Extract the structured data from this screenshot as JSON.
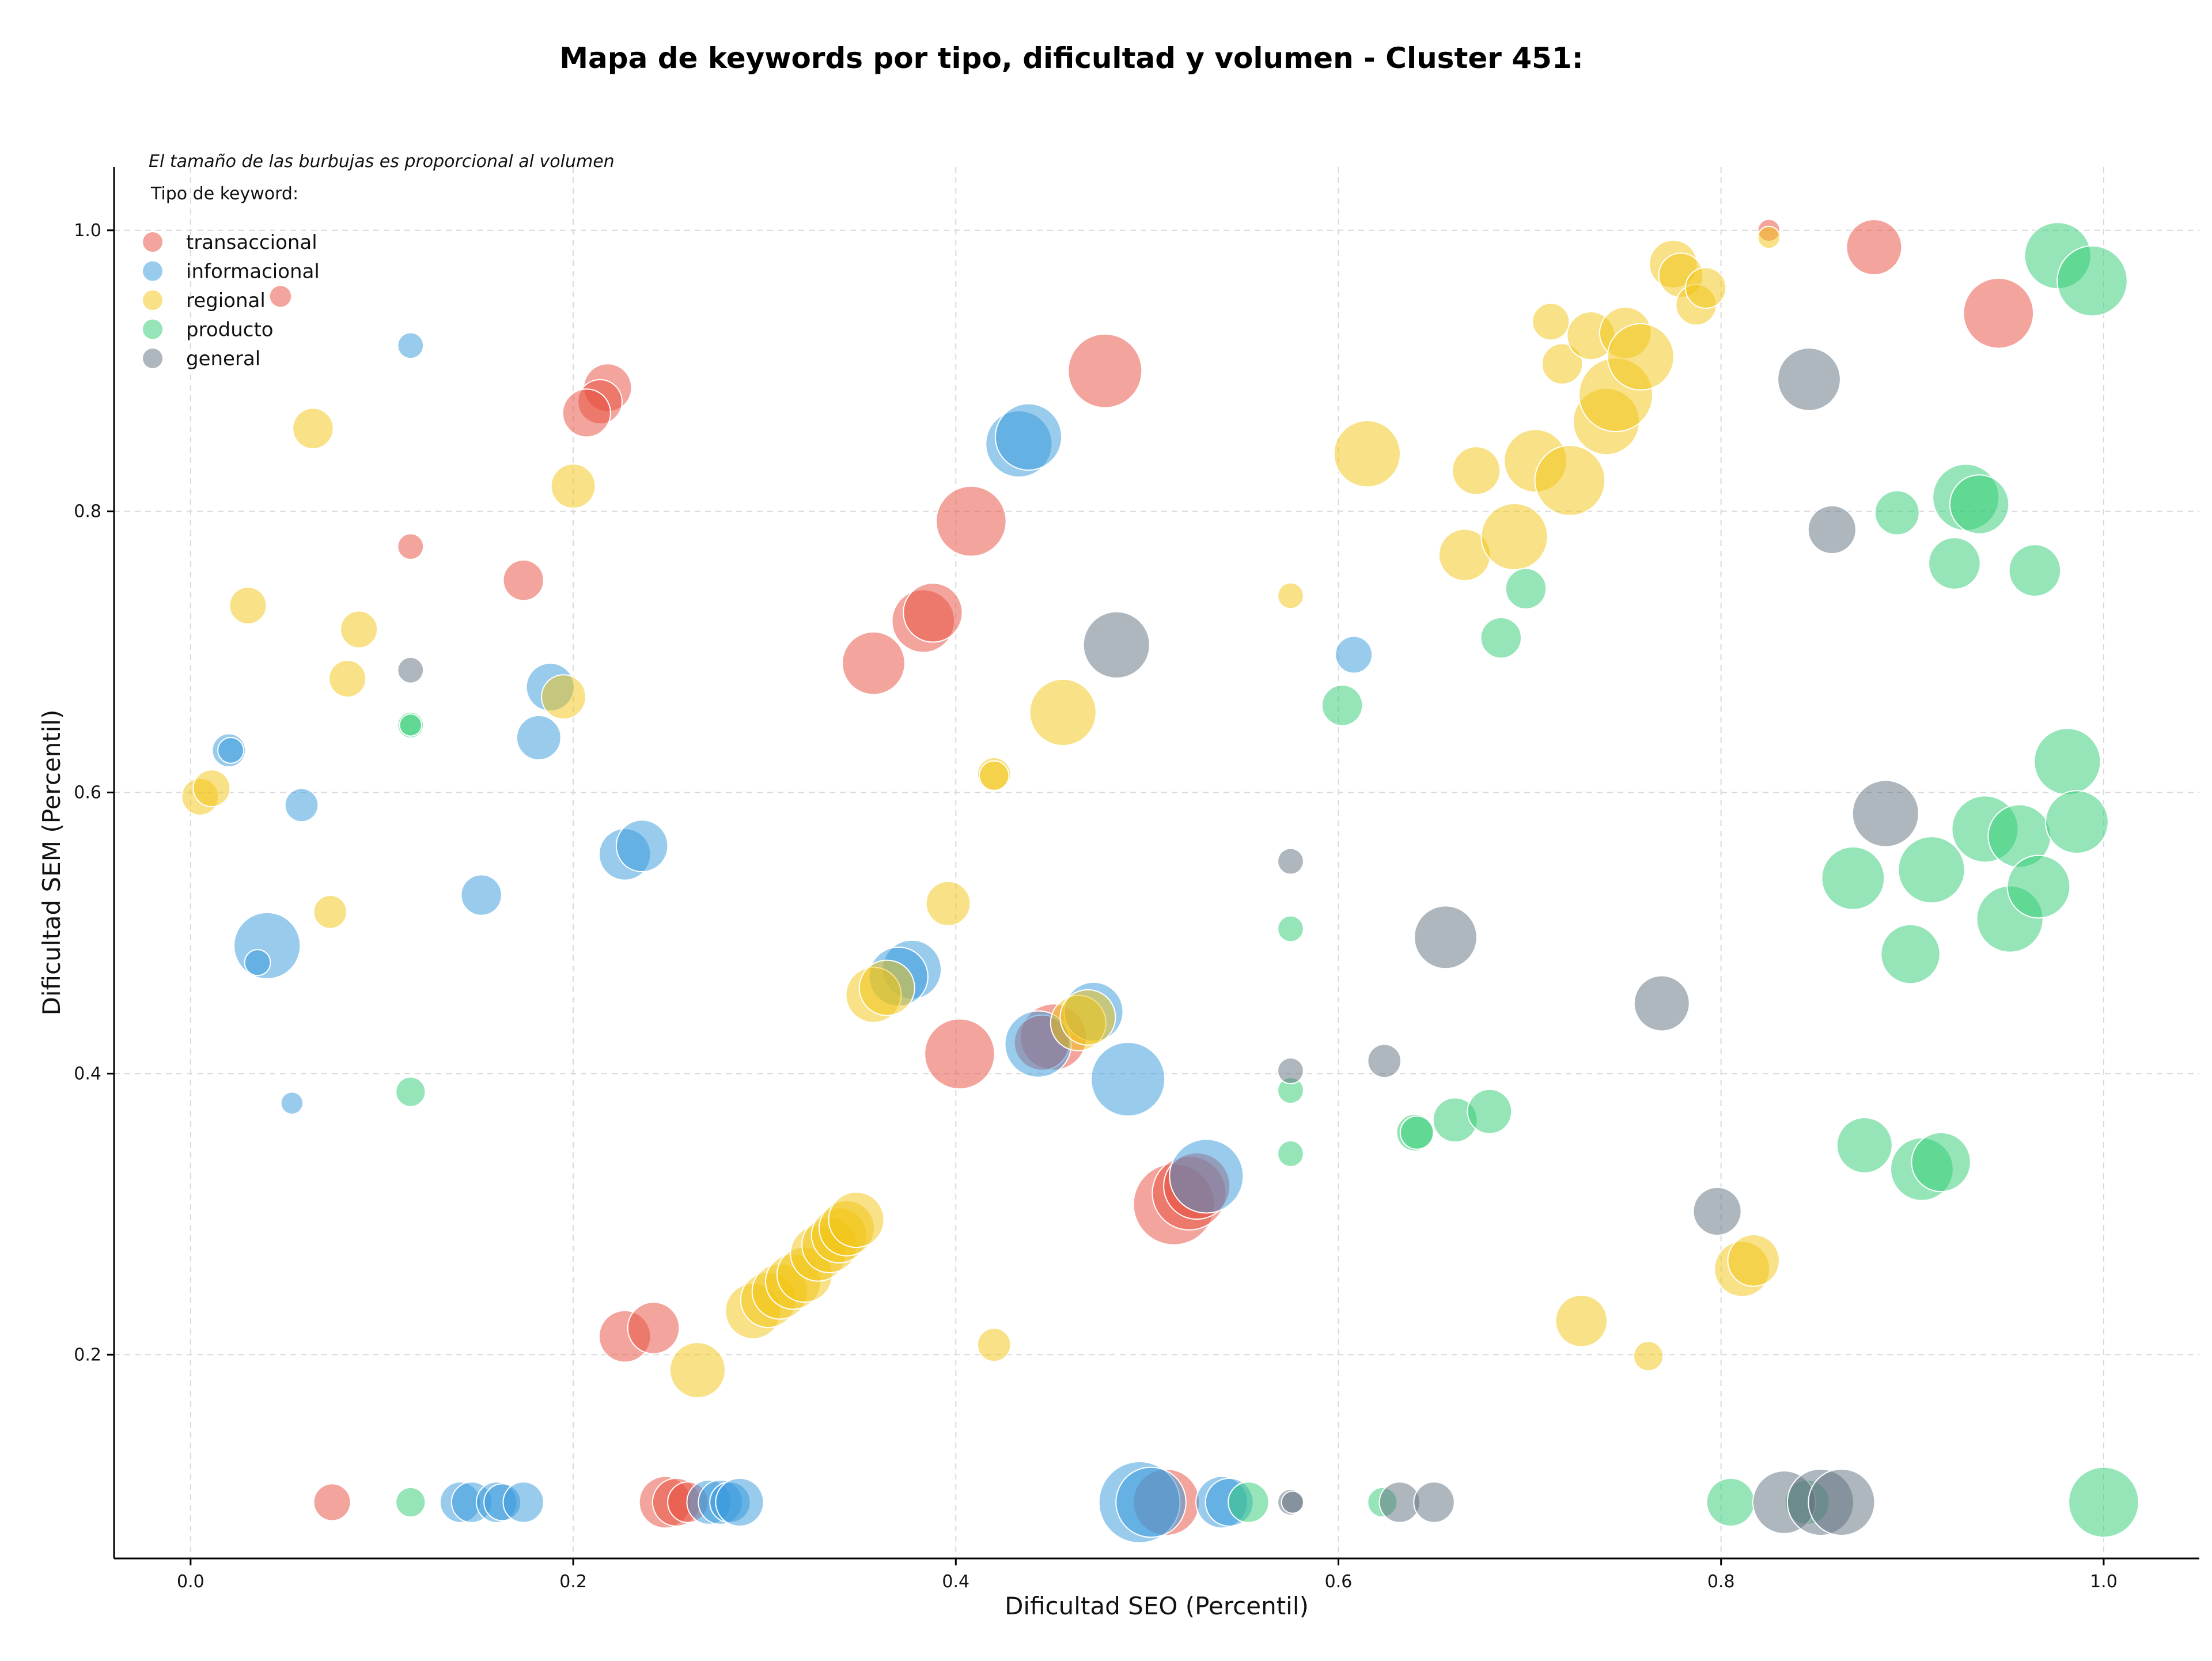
{
  "chart_data": {
    "type": "scatter",
    "title": "Mapa de keywords por tipo, dificultad y volumen - Cluster 451:",
    "xlabel": "Dificultad SEO (Percentil)",
    "ylabel": "Dificultad SEM (Percentil)",
    "xlim": [
      -0.04,
      1.05
    ],
    "ylim": [
      0.055,
      1.045
    ],
    "xticks": [
      "0.0",
      "0.2",
      "0.4",
      "0.6",
      "0.8",
      "1.0"
    ],
    "yticks": [
      "0.2",
      "0.4",
      "0.6",
      "0.8",
      "1.0"
    ],
    "grid": true,
    "legend": {
      "placement": "top-left",
      "note": "El tamaño de las burbujas es proporcional al volumen",
      "title": "Tipo de keyword:"
    },
    "size_scale": "bubble size proportional to volume (relative units)",
    "series": [
      {
        "name": "transaccional",
        "color": "#e74c3c",
        "points": [
          [
            0.047,
            0.953,
            12
          ],
          [
            0.115,
            0.775,
            14
          ],
          [
            0.174,
            0.751,
            22
          ],
          [
            0.218,
            0.888,
            26
          ],
          [
            0.214,
            0.878,
            24
          ],
          [
            0.207,
            0.87,
            26
          ],
          [
            0.478,
            0.9,
            40
          ],
          [
            0.408,
            0.793,
            38
          ],
          [
            0.383,
            0.722,
            34
          ],
          [
            0.388,
            0.728,
            32
          ],
          [
            0.357,
            0.692,
            34
          ],
          [
            0.402,
            0.414,
            38
          ],
          [
            0.451,
            0.426,
            36
          ],
          [
            0.445,
            0.422,
            30
          ],
          [
            0.514,
            0.307,
            44
          ],
          [
            0.522,
            0.315,
            40
          ],
          [
            0.526,
            0.32,
            36
          ],
          [
            0.227,
            0.213,
            28
          ],
          [
            0.242,
            0.219,
            28
          ],
          [
            0.074,
            0.095,
            20
          ],
          [
            0.248,
            0.095,
            28
          ],
          [
            0.254,
            0.095,
            26
          ],
          [
            0.26,
            0.095,
            22
          ],
          [
            0.51,
            0.095,
            36
          ],
          [
            0.825,
            1.0,
            12
          ],
          [
            0.88,
            0.988,
            30
          ],
          [
            0.945,
            0.941,
            38
          ]
        ]
      },
      {
        "name": "informacional",
        "color": "#3498db",
        "points": [
          [
            0.115,
            0.918,
            14
          ],
          [
            0.02,
            0.63,
            18
          ],
          [
            0.021,
            0.63,
            14
          ],
          [
            0.058,
            0.591,
            18
          ],
          [
            0.04,
            0.491,
            36
          ],
          [
            0.035,
            0.479,
            14
          ],
          [
            0.053,
            0.379,
            12
          ],
          [
            0.152,
            0.527,
            22
          ],
          [
            0.182,
            0.639,
            24
          ],
          [
            0.188,
            0.675,
            26
          ],
          [
            0.227,
            0.556,
            28
          ],
          [
            0.236,
            0.562,
            28
          ],
          [
            0.433,
            0.848,
            36
          ],
          [
            0.438,
            0.853,
            36
          ],
          [
            0.377,
            0.474,
            32
          ],
          [
            0.37,
            0.469,
            32
          ],
          [
            0.443,
            0.421,
            36
          ],
          [
            0.472,
            0.444,
            32
          ],
          [
            0.49,
            0.396,
            40
          ],
          [
            0.608,
            0.698,
            20
          ],
          [
            0.531,
            0.327,
            40
          ],
          [
            0.141,
            0.095,
            22
          ],
          [
            0.147,
            0.095,
            22
          ],
          [
            0.16,
            0.095,
            22
          ],
          [
            0.163,
            0.095,
            20
          ],
          [
            0.174,
            0.095,
            22
          ],
          [
            0.271,
            0.095,
            24
          ],
          [
            0.277,
            0.095,
            24
          ],
          [
            0.282,
            0.095,
            22
          ],
          [
            0.287,
            0.095,
            26
          ],
          [
            0.496,
            0.095,
            44
          ],
          [
            0.502,
            0.095,
            38
          ],
          [
            0.539,
            0.095,
            28
          ],
          [
            0.543,
            0.095,
            26
          ]
        ]
      },
      {
        "name": "regional",
        "color": "#f1c40f",
        "points": [
          [
            0.064,
            0.859,
            22
          ],
          [
            0.03,
            0.733,
            20
          ],
          [
            0.088,
            0.716,
            20
          ],
          [
            0.082,
            0.681,
            20
          ],
          [
            0.005,
            0.597,
            20
          ],
          [
            0.011,
            0.603,
            20
          ],
          [
            0.073,
            0.515,
            18
          ],
          [
            0.2,
            0.818,
            24
          ],
          [
            0.195,
            0.668,
            24
          ],
          [
            0.42,
            0.613,
            18
          ],
          [
            0.42,
            0.612,
            16
          ],
          [
            0.396,
            0.521,
            24
          ],
          [
            0.357,
            0.456,
            30
          ],
          [
            0.364,
            0.461,
            30
          ],
          [
            0.456,
            0.657,
            36
          ],
          [
            0.464,
            0.436,
            30
          ],
          [
            0.469,
            0.44,
            30
          ],
          [
            0.575,
            0.74,
            14
          ],
          [
            0.265,
            0.189,
            30
          ],
          [
            0.42,
            0.207,
            18
          ],
          [
            0.294,
            0.231,
            30
          ],
          [
            0.302,
            0.239,
            30
          ],
          [
            0.308,
            0.245,
            30
          ],
          [
            0.315,
            0.252,
            30
          ],
          [
            0.321,
            0.257,
            30
          ],
          [
            0.328,
            0.272,
            30
          ],
          [
            0.334,
            0.278,
            30
          ],
          [
            0.339,
            0.285,
            30
          ],
          [
            0.343,
            0.29,
            30
          ],
          [
            0.348,
            0.296,
            30
          ],
          [
            0.615,
            0.841,
            36
          ],
          [
            0.672,
            0.829,
            26
          ],
          [
            0.666,
            0.769,
            28
          ],
          [
            0.692,
            0.782,
            36
          ],
          [
            0.703,
            0.836,
            34
          ],
          [
            0.721,
            0.822,
            38
          ],
          [
            0.711,
            0.935,
            20
          ],
          [
            0.717,
            0.905,
            22
          ],
          [
            0.732,
            0.925,
            26
          ],
          [
            0.74,
            0.864,
            36
          ],
          [
            0.745,
            0.883,
            40
          ],
          [
            0.75,
            0.927,
            28
          ],
          [
            0.758,
            0.91,
            36
          ],
          [
            0.775,
            0.976,
            26
          ],
          [
            0.779,
            0.968,
            24
          ],
          [
            0.787,
            0.947,
            22
          ],
          [
            0.792,
            0.959,
            22
          ],
          [
            0.825,
            0.995,
            12
          ],
          [
            0.811,
            0.261,
            30
          ],
          [
            0.817,
            0.267,
            28
          ],
          [
            0.727,
            0.224,
            28
          ],
          [
            0.762,
            0.199,
            16
          ]
        ]
      },
      {
        "name": "producto",
        "color": "#2ecc71",
        "points": [
          [
            0.115,
            0.648,
            14
          ],
          [
            0.115,
            0.648,
            12
          ],
          [
            0.115,
            0.387,
            16
          ],
          [
            0.115,
            0.095,
            16
          ],
          [
            0.575,
            0.503,
            14
          ],
          [
            0.575,
            0.388,
            14
          ],
          [
            0.575,
            0.343,
            14
          ],
          [
            0.602,
            0.662,
            22
          ],
          [
            0.685,
            0.71,
            22
          ],
          [
            0.698,
            0.745,
            22
          ],
          [
            0.64,
            0.358,
            20
          ],
          [
            0.641,
            0.358,
            18
          ],
          [
            0.661,
            0.367,
            24
          ],
          [
            0.679,
            0.373,
            24
          ],
          [
            0.623,
            0.095,
            16
          ],
          [
            0.553,
            0.095,
            22
          ],
          [
            0.805,
            0.095,
            26
          ],
          [
            0.845,
            0.095,
            24
          ],
          [
            0.875,
            0.349,
            30
          ],
          [
            0.869,
            0.539,
            34
          ],
          [
            0.899,
            0.485,
            32
          ],
          [
            0.91,
            0.545,
            36
          ],
          [
            0.905,
            0.332,
            34
          ],
          [
            0.915,
            0.337,
            32
          ],
          [
            0.892,
            0.799,
            24
          ],
          [
            0.922,
            0.763,
            28
          ],
          [
            0.928,
            0.81,
            36
          ],
          [
            0.935,
            0.805,
            32
          ],
          [
            0.938,
            0.574,
            36
          ],
          [
            0.951,
            0.51,
            36
          ],
          [
            0.956,
            0.569,
            34
          ],
          [
            0.964,
            0.758,
            28
          ],
          [
            0.966,
            0.533,
            34
          ],
          [
            0.981,
            0.622,
            36
          ],
          [
            0.986,
            0.579,
            34
          ],
          [
            0.976,
            0.982,
            36
          ],
          [
            0.994,
            0.964,
            38
          ],
          [
            1.0,
            0.095,
            38
          ]
        ]
      },
      {
        "name": "general",
        "color": "#5d6d7e",
        "points": [
          [
            0.115,
            0.687,
            14
          ],
          [
            0.484,
            0.705,
            36
          ],
          [
            0.575,
            0.551,
            14
          ],
          [
            0.575,
            0.402,
            14
          ],
          [
            0.624,
            0.409,
            18
          ],
          [
            0.656,
            0.497,
            34
          ],
          [
            0.769,
            0.45,
            30
          ],
          [
            0.798,
            0.302,
            26
          ],
          [
            0.846,
            0.894,
            34
          ],
          [
            0.858,
            0.787,
            26
          ],
          [
            0.886,
            0.585,
            36
          ],
          [
            0.575,
            0.095,
            14
          ],
          [
            0.576,
            0.095,
            12
          ],
          [
            0.632,
            0.095,
            22
          ],
          [
            0.65,
            0.095,
            22
          ],
          [
            0.833,
            0.095,
            34
          ],
          [
            0.852,
            0.095,
            36
          ],
          [
            0.863,
            0.095,
            36
          ]
        ]
      }
    ]
  }
}
